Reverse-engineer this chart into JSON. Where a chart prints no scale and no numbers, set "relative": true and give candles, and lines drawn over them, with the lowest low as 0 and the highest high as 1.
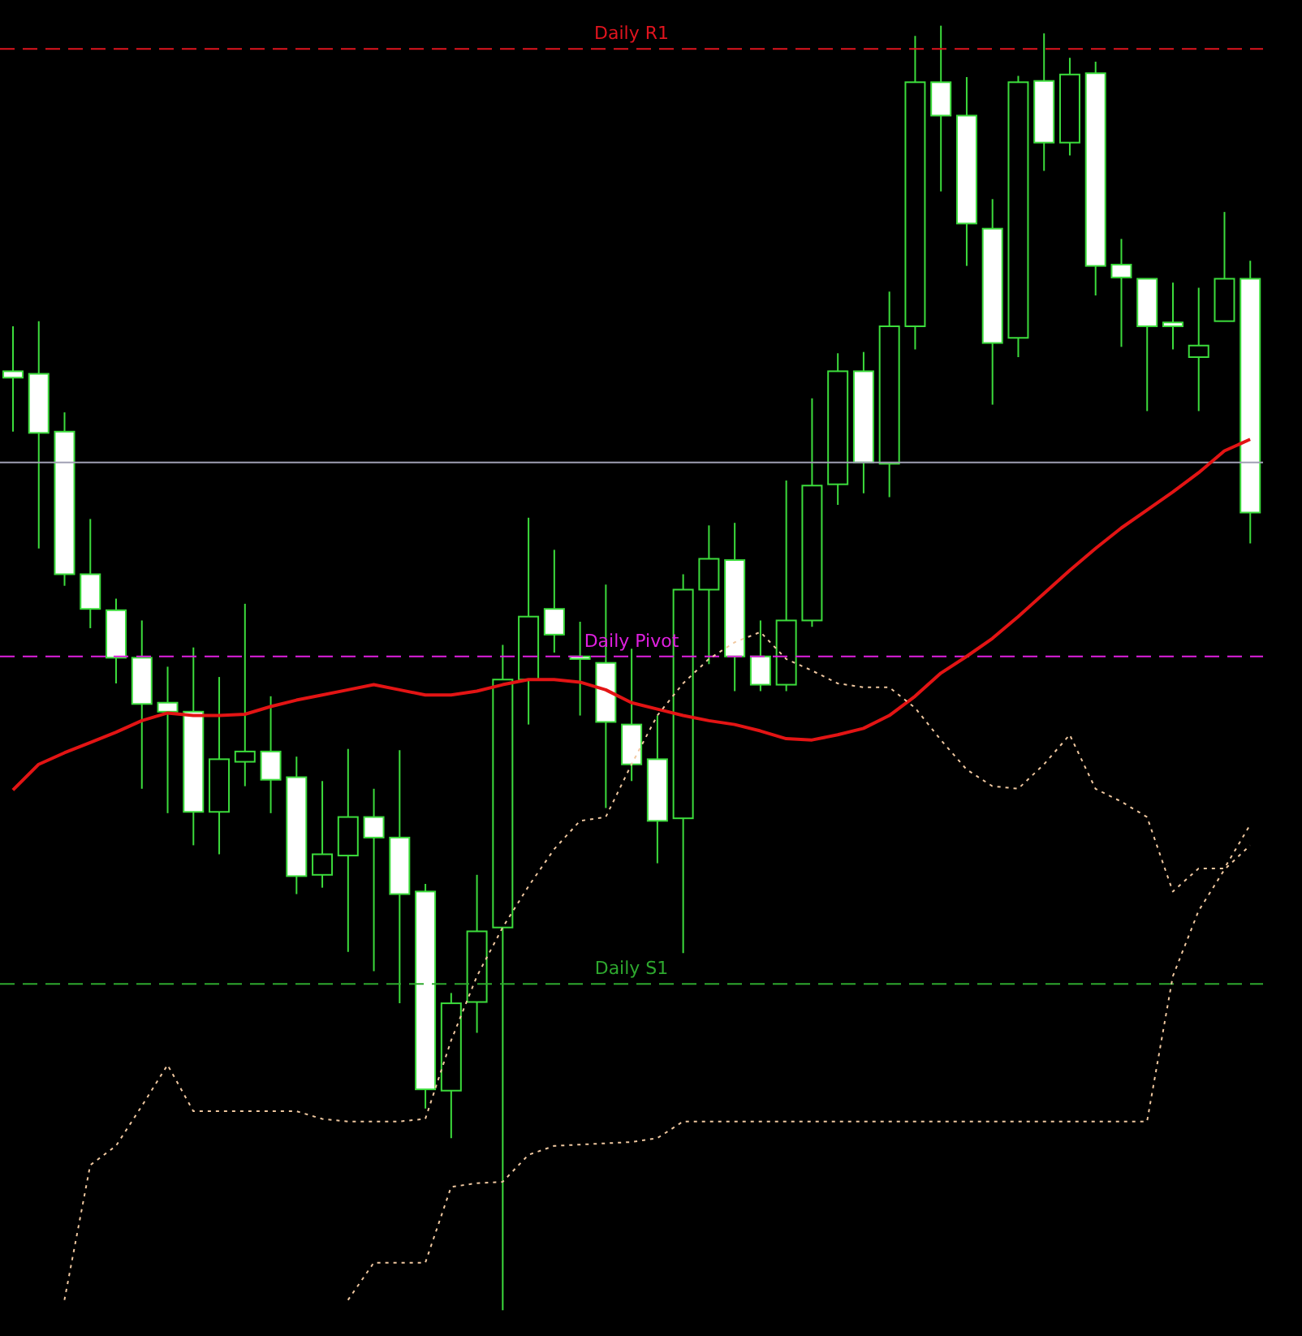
{
  "chart_data": {
    "type": "candlestick",
    "relative": true,
    "color": "#3cdc3c",
    "categories": [
      null,
      null,
      null,
      null,
      null,
      null,
      null,
      null,
      null,
      null,
      null,
      null,
      null,
      null,
      null,
      null,
      null,
      null,
      null,
      null,
      null,
      null,
      null,
      null,
      null,
      null,
      null,
      null,
      null,
      null,
      null,
      null,
      null,
      null,
      null,
      null,
      null,
      null,
      null,
      null,
      null,
      null,
      null,
      null,
      null,
      null,
      null,
      null,
      null
    ],
    "ohlc": [
      [
        0.731,
        0.766,
        0.684,
        0.726
      ],
      [
        0.729,
        0.77,
        0.593,
        0.683
      ],
      [
        0.684,
        0.699,
        0.564,
        0.573
      ],
      [
        0.573,
        0.616,
        0.531,
        0.546
      ],
      [
        0.545,
        0.554,
        0.488,
        0.508
      ],
      [
        0.508,
        0.537,
        0.406,
        0.472
      ],
      [
        0.473,
        0.501,
        0.387,
        0.466
      ],
      [
        0.466,
        0.516,
        0.362,
        0.388
      ],
      [
        0.388,
        0.493,
        0.355,
        0.429
      ],
      [
        0.427,
        0.55,
        0.408,
        0.435
      ],
      [
        0.435,
        0.478,
        0.387,
        0.413
      ],
      [
        0.415,
        0.431,
        0.324,
        0.338
      ],
      [
        0.339,
        0.412,
        0.329,
        0.355
      ],
      [
        0.354,
        0.437,
        0.279,
        0.384
      ],
      [
        0.384,
        0.406,
        0.264,
        0.368
      ],
      [
        0.368,
        0.436,
        0.239,
        0.324
      ],
      [
        0.326,
        0.332,
        0.157,
        0.172
      ],
      [
        0.171,
        0.247,
        0.134,
        0.239
      ],
      [
        0.24,
        0.339,
        0.216,
        0.295
      ],
      [
        0.298,
        0.518,
        0,
        0.491
      ],
      [
        0.491,
        0.617,
        0.456,
        0.54
      ],
      [
        0.546,
        0.592,
        0.512,
        0.526
      ],
      [
        0.509,
        0.536,
        0.463,
        0.507
      ],
      [
        0.504,
        0.565,
        0.391,
        0.458
      ],
      [
        0.456,
        0.515,
        0.412,
        0.425
      ],
      [
        0.429,
        0.463,
        0.348,
        0.381
      ],
      [
        0.383,
        0.573,
        0.278,
        0.561
      ],
      [
        0.561,
        0.611,
        0.503,
        0.585
      ],
      [
        0.584,
        0.613,
        0.482,
        0.509
      ],
      [
        0.509,
        0.537,
        0.482,
        0.487
      ],
      [
        0.487,
        0.646,
        0.482,
        0.537
      ],
      [
        0.537,
        0.71,
        0.532,
        0.642
      ],
      [
        0.643,
        0.745,
        0.627,
        0.731
      ],
      [
        0.731,
        0.746,
        0.636,
        0.66
      ],
      [
        0.659,
        0.793,
        0.633,
        0.766
      ],
      [
        0.766,
        0.992,
        0.748,
        0.956
      ],
      [
        0.956,
        1,
        0.871,
        0.93
      ],
      [
        0.93,
        0.96,
        0.813,
        0.846
      ],
      [
        0.842,
        0.865,
        0.705,
        0.753
      ],
      [
        0.757,
        0.961,
        0.742,
        0.956
      ],
      [
        0.957,
        0.994,
        0.887,
        0.909
      ],
      [
        0.909,
        0.975,
        0.899,
        0.962
      ],
      [
        0.963,
        0.972,
        0.79,
        0.813
      ],
      [
        0.814,
        0.834,
        0.75,
        0.804
      ],
      [
        0.803,
        0.803,
        0.7,
        0.766
      ],
      [
        0.769,
        0.8,
        0.748,
        0.766
      ],
      [
        0.742,
        0.796,
        0.7,
        0.751
      ],
      [
        0.77,
        0.855,
        0.77,
        0.803
      ],
      [
        0.803,
        0.817,
        0.597,
        0.621
      ]
    ],
    "series": [
      {
        "type": "line",
        "color": "#e31414",
        "values": [
          0.405,
          0.425,
          0.434,
          0.442,
          0.45,
          0.459,
          0.465,
          0.463,
          0.463,
          0.464,
          0.47,
          0.475,
          0.479,
          0.483,
          0.487,
          0.483,
          0.479,
          0.479,
          0.482,
          0.487,
          0.491,
          0.491,
          0.489,
          0.483,
          0.473,
          0.468,
          0.463,
          0.459,
          0.456,
          0.451,
          0.445,
          0.444,
          0.448,
          0.453,
          0.463,
          0.478,
          0.496,
          0.509,
          0.523,
          0.54,
          0.558,
          0.576,
          0.593,
          0.609,
          0.623,
          0.637,
          0.652,
          0.669,
          0.678
        ]
      },
      {
        "type": "line",
        "color": "#f0c8a0",
        "line_style": "dotted",
        "values": [
          null,
          null,
          0.008,
          0.113,
          0.128,
          0.159,
          0.191,
          0.155,
          0.155,
          0.155,
          0.155,
          0.155,
          0.149,
          0.147,
          0.147,
          0.147,
          0.149,
          0.21,
          0.26,
          0.298,
          0.33,
          0.359,
          0.381,
          0.384,
          0.425,
          0.463,
          0.488,
          0.507,
          0.52,
          0.528,
          0.507,
          0.498,
          0.488,
          0.485,
          0.485,
          0.469,
          0.444,
          0.421,
          0.408,
          0.406,
          0.425,
          0.448,
          0.406,
          0.396,
          0.384,
          0.326,
          0.344,
          0.344,
          0.378
        ]
      },
      {
        "type": "line",
        "color": "#f0c8a0",
        "line_style": "dotted",
        "values": [
          null,
          null,
          null,
          null,
          null,
          null,
          null,
          null,
          null,
          null,
          null,
          null,
          null,
          0.008,
          0.037,
          0.037,
          0.037,
          0.096,
          0.099,
          0.1,
          0.121,
          0.128,
          0.129,
          0.13,
          0.131,
          0.134,
          0.147,
          0.147,
          0.147,
          0.147,
          0.147,
          0.147,
          0.147,
          0.147,
          0.147,
          0.147,
          0.147,
          0.147,
          0.147,
          0.147,
          0.147,
          0.147,
          0.147,
          0.147,
          0.147,
          0.26,
          0.311,
          0.343,
          0.362
        ]
      }
    ],
    "ref_lines": [
      {
        "axis": "y",
        "value": 0.982,
        "label": "Daily R1",
        "color": "#e0141e",
        "line_style": "dashed"
      },
      {
        "axis": "y",
        "value": 0.66,
        "color": "#a0a0b4",
        "line_style": "solid"
      },
      {
        "axis": "y",
        "value": 0.509,
        "label": "Daily Pivot",
        "color": "#e020e0",
        "line_style": "dashed"
      },
      {
        "axis": "y",
        "value": 0.254,
        "label": "Daily S1",
        "color": "#2ea82e",
        "line_style": "dashed"
      }
    ]
  }
}
